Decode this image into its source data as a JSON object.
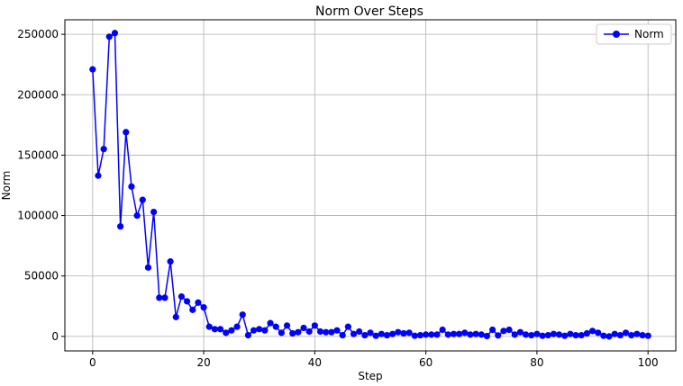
{
  "chart_data": {
    "type": "line",
    "title": "Norm Over Steps",
    "xlabel": "Step",
    "ylabel": "Norm",
    "xlim": [
      -5,
      105
    ],
    "ylim": [
      -12000,
      262000
    ],
    "xticks": [
      0,
      20,
      40,
      60,
      80,
      100
    ],
    "xtick_labels": [
      "0",
      "20",
      "40",
      "60",
      "80",
      "100"
    ],
    "yticks": [
      0,
      50000,
      100000,
      150000,
      200000,
      250000
    ],
    "ytick_labels": [
      "0",
      "50000",
      "100000",
      "150000",
      "200000",
      "250000"
    ],
    "grid": true,
    "legend_position": "top-right",
    "series": [
      {
        "name": "Norm",
        "color": "#0000ff",
        "marker": "circle",
        "x": [
          0,
          1,
          2,
          3,
          4,
          5,
          6,
          7,
          8,
          9,
          10,
          11,
          12,
          13,
          14,
          15,
          16,
          17,
          18,
          19,
          20,
          21,
          22,
          23,
          24,
          25,
          26,
          27,
          28,
          29,
          30,
          31,
          32,
          33,
          34,
          35,
          36,
          37,
          38,
          39,
          40,
          41,
          42,
          43,
          44,
          45,
          46,
          47,
          48,
          49,
          50,
          51,
          52,
          53,
          54,
          55,
          56,
          57,
          58,
          59,
          60,
          61,
          62,
          63,
          64,
          65,
          66,
          67,
          68,
          69,
          70,
          71,
          72,
          73,
          74,
          75,
          76,
          77,
          78,
          79,
          80,
          81,
          82,
          83,
          84,
          85,
          86,
          87,
          88,
          89,
          90,
          91,
          92,
          93,
          94,
          95,
          96,
          97,
          98,
          99,
          100
        ],
        "values": [
          221000,
          133000,
          155000,
          248000,
          251000,
          91000,
          169000,
          124000,
          100000,
          113000,
          57000,
          103000,
          32000,
          32000,
          62000,
          16000,
          33000,
          29000,
          22000,
          28000,
          24000,
          8000,
          6000,
          6000,
          3000,
          5000,
          8000,
          18000,
          1000,
          5000,
          6000,
          5000,
          11000,
          8000,
          3000,
          9000,
          2500,
          3500,
          7000,
          4000,
          9000,
          4000,
          3500,
          3500,
          5000,
          1000,
          8000,
          2000,
          4000,
          1000,
          3000,
          500,
          2000,
          1000,
          2000,
          3500,
          2500,
          3000,
          500,
          1000,
          1500,
          1500,
          1500,
          5500,
          1500,
          2000,
          2000,
          3000,
          1500,
          2000,
          1500,
          300,
          5500,
          800,
          4500,
          5500,
          1500,
          3500,
          1500,
          1000,
          2000,
          500,
          1000,
          2000,
          1500,
          500,
          2000,
          1000,
          1000,
          2500,
          4500,
          3000,
          500,
          0,
          2000,
          1000,
          3000,
          1000,
          2000,
          1000,
          500
        ]
      }
    ]
  }
}
